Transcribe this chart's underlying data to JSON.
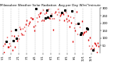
{
  "title": "Milwaukee Weather Solar Radiation  Avg per Day W/m²/minute",
  "background_color": "#ffffff",
  "dot_color": "#dd0000",
  "black_dot_color": "#000000",
  "grid_color": "#999999",
  "ylim": [
    0,
    300
  ],
  "yticks": [
    50,
    100,
    150,
    200,
    250,
    300
  ],
  "n_points": 120,
  "vline_step": 10,
  "x_tick_step": 10,
  "x_tick_labels": [
    "5/1",
    "1/1",
    "2/1",
    "3/1",
    "4/1",
    "5/1",
    "6/1",
    "7/1",
    "8/1",
    "9/1",
    "10/1",
    "11/1",
    "12/1"
  ],
  "seed": 17
}
